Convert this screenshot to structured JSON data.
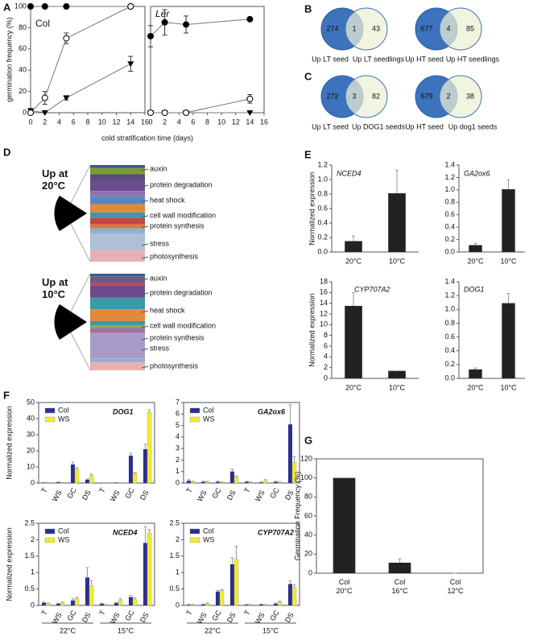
{
  "panel_labels": [
    "A",
    "B",
    "C",
    "D",
    "E",
    "F",
    "G"
  ],
  "venns": [
    {
      "left_label": "Up LT seed",
      "right_label": "Up LT seedlings",
      "left": 274,
      "both": 1,
      "right": 43
    },
    {
      "left_label": "Up HT seed",
      "right_label": "Up HT seedlings",
      "left": 677,
      "both": 4,
      "right": 85
    },
    {
      "left_label": "Up LT seed",
      "right_label": "Up DOG1 seeds",
      "left": 272,
      "both": 3,
      "right": 82
    },
    {
      "left_label": "Up HT seed",
      "right_label": "Up dog1 seeds",
      "left": 679,
      "both": 2,
      "right": 38
    }
  ],
  "panel_d": {
    "stacks": [
      {
        "title": "Up at 20°C",
        "labels": [
          "auxin",
          "protein degradation",
          "heat shock",
          "cell wall modification",
          "protein synthesis",
          "stress",
          "photosynthesis"
        ]
      },
      {
        "title": "Up at 10°C",
        "labels": [
          "auxin",
          "protein degradation",
          "heat shock",
          "cell wall modification",
          "protein synthesis",
          "stress",
          "photosynthesis"
        ]
      }
    ]
  },
  "chart_data": [
    {
      "type": "line",
      "title": "Col",
      "ylabel": "germination frequency (%)",
      "xlabel": "cold stratification time (days)",
      "x": [
        0,
        2,
        5,
        14
      ],
      "xlim": [
        0,
        16
      ],
      "xticks": [
        0,
        2,
        4,
        6,
        8,
        10,
        12,
        14,
        16
      ],
      "ylim": [
        0,
        100
      ],
      "yticks": [
        0,
        20,
        40,
        60,
        80,
        100
      ],
      "series": [
        {
          "marker": "filled-circle",
          "color": "#000000",
          "values": [
            100,
            100,
            100,
            100
          ],
          "errors": [
            null,
            null,
            null,
            null
          ]
        },
        {
          "marker": "triangle",
          "color": "#000000",
          "values": [
            2,
            0,
            14,
            46
          ],
          "errors": [
            null,
            null,
            2,
            7
          ]
        },
        {
          "marker": "open-circle",
          "color": "#000000",
          "values": [
            0,
            14,
            70,
            100
          ],
          "errors": [
            null,
            6,
            5,
            null
          ]
        }
      ]
    },
    {
      "type": "line",
      "title": "Ler",
      "x": [
        0,
        2,
        5,
        14
      ],
      "xlim": [
        0,
        16
      ],
      "xticks": [
        0,
        2,
        4,
        6,
        8,
        10,
        12,
        14,
        16
      ],
      "ylim": [
        0,
        100
      ],
      "series": [
        {
          "marker": "filled-circle",
          "color": "#000000",
          "values": [
            72,
            85,
            83,
            88
          ],
          "errors": [
            10,
            12,
            8,
            null
          ]
        },
        {
          "marker": "triangle",
          "color": "#000000",
          "values": [
            0,
            0,
            0,
            0
          ],
          "errors": [
            null,
            null,
            null,
            null
          ]
        },
        {
          "marker": "open-circle",
          "color": "#000000",
          "values": [
            0,
            0,
            0,
            13
          ],
          "errors": [
            null,
            null,
            null,
            4
          ]
        }
      ]
    },
    {
      "type": "bar",
      "title": "NCED4",
      "ylabel": "Normalized expression",
      "categories": [
        "20°C",
        "10°C"
      ],
      "values": [
        0.15,
        0.81
      ],
      "errors": [
        0.07,
        0.32
      ],
      "color": "#222222",
      "ylim": [
        0,
        1.2
      ],
      "yticks": [
        {
          "value": 0,
          "label": "0.0"
        },
        0.2,
        0.4,
        0.6,
        0.8,
        {
          "value": 1,
          "label": "1.0"
        },
        1.2
      ]
    },
    {
      "type": "bar",
      "title": "GA2ox6",
      "categories": [
        "20°C",
        "10°C"
      ],
      "values": [
        0.11,
        1.01
      ],
      "errors": [
        0.03,
        0.15
      ],
      "color": "#222222",
      "ylim": [
        0,
        1.4
      ],
      "yticks": [
        {
          "value": 0,
          "label": "0.0"
        },
        0.2,
        0.4,
        0.6,
        0.8,
        {
          "value": 1,
          "label": "1.0"
        },
        1.2,
        1.4
      ]
    },
    {
      "type": "bar",
      "title": "CYP707A2",
      "ylabel": "Normalized expression",
      "categories": [
        "20°C",
        "10°C"
      ],
      "values": [
        13.5,
        1.4
      ],
      "errors": [
        2.5,
        0
      ],
      "color": "#222222",
      "ylim": [
        0,
        18
      ],
      "yticks": [
        0,
        2,
        4,
        6,
        8,
        10,
        12,
        14,
        16,
        18
      ]
    },
    {
      "type": "bar",
      "title": "DOG1",
      "categories": [
        "20°C",
        "10°C"
      ],
      "values": [
        0.13,
        1.09
      ],
      "errors": [
        0.02,
        0.14
      ],
      "color": "#222222",
      "ylim": [
        0,
        1.4
      ],
      "yticks": [
        {
          "value": 0,
          "label": "0.0"
        },
        0.2,
        0.4,
        0.6,
        0.8,
        {
          "value": 1,
          "label": "1.0"
        },
        1.2,
        1.4
      ]
    },
    {
      "type": "bar",
      "title": "DOG1",
      "ylabel": "Normalized expression",
      "categories": [
        "T",
        "WS",
        "GC",
        "DS",
        "T",
        "WS",
        "GC",
        "DS"
      ],
      "ylim": [
        0,
        50
      ],
      "yticks": [
        0,
        10,
        20,
        30,
        40,
        50
      ],
      "series": [
        {
          "name": "Col",
          "color": "#2b2f8f",
          "values": [
            0.3,
            0.5,
            11.5,
            2,
            0.1,
            0.2,
            17,
            21
          ],
          "errors": [
            0.1,
            0.1,
            1.5,
            0.5,
            0.1,
            0.1,
            1.5,
            3
          ]
        },
        {
          "name": "WS",
          "color": "#f2ec2e",
          "values": [
            0.3,
            0.3,
            8.5,
            4.5,
            0.1,
            0.1,
            6,
            44
          ],
          "errors": [
            0.1,
            0.1,
            1,
            1,
            0.1,
            0.1,
            0.5,
            1.5
          ]
        }
      ]
    },
    {
      "type": "bar",
      "title": "GA2ox6",
      "categories": [
        "T",
        "WS",
        "GC",
        "DS",
        "T",
        "WS",
        "GC",
        "DS"
      ],
      "ylim": [
        0,
        7
      ],
      "yticks": [
        0,
        1,
        2,
        3,
        4,
        5,
        6,
        7
      ],
      "series": [
        {
          "name": "Col",
          "color": "#2b2f8f",
          "values": [
            0.2,
            0.1,
            0.1,
            1.0,
            0.1,
            0.05,
            0.1,
            5.1
          ],
          "errors": [
            0.1,
            0.05,
            0.05,
            0.2,
            0.05,
            0.05,
            0.05,
            1.7
          ]
        },
        {
          "name": "WS",
          "color": "#f2ec2e",
          "values": [
            0.1,
            0.1,
            0.05,
            0.5,
            0.05,
            0.2,
            0.05,
            1.8
          ],
          "errors": [
            0.05,
            0.05,
            0.05,
            0.1,
            0.05,
            0.1,
            0.05,
            0.5
          ]
        }
      ]
    },
    {
      "type": "bar",
      "title": "NCED4",
      "ylabel": "Normalized expression",
      "categories": [
        "T",
        "WS",
        "GC",
        "DS",
        "T",
        "WS",
        "GC",
        "DS"
      ],
      "groups": [
        "22°C",
        "15°C"
      ],
      "ylim": [
        0,
        2.5
      ],
      "yticks": [
        0,
        0.5,
        1,
        1.5,
        2,
        2.5
      ],
      "series": [
        {
          "name": "Col",
          "color": "#2b2f8f",
          "values": [
            0.08,
            0.05,
            0.15,
            0.85,
            0.05,
            0.07,
            0.25,
            1.9
          ],
          "errors": [
            0.02,
            0.02,
            0.05,
            0.3,
            0.02,
            0.02,
            0.05,
            0.5
          ]
        },
        {
          "name": "WS",
          "color": "#f2ec2e",
          "values": [
            0.05,
            0.07,
            0.2,
            0.6,
            0.02,
            0.15,
            0.18,
            2.2
          ],
          "errors": [
            0.02,
            0.03,
            0.05,
            0.15,
            0.01,
            0.05,
            0.05,
            0.1
          ]
        }
      ]
    },
    {
      "type": "bar",
      "title": "CYP707A2",
      "categories": [
        "T",
        "WS",
        "GC",
        "DS",
        "T",
        "WS",
        "GC",
        "DS"
      ],
      "groups": [
        "22°C",
        "15°C"
      ],
      "ylim": [
        0,
        2.5
      ],
      "yticks": [
        0,
        0.5,
        1,
        1.5,
        2,
        2.5
      ],
      "series": [
        {
          "name": "Col",
          "color": "#2b2f8f",
          "values": [
            0.02,
            0.03,
            0.42,
            1.25,
            0.02,
            0.03,
            0.05,
            0.65
          ],
          "errors": [
            0.01,
            0.01,
            0.03,
            0.2,
            0.01,
            0.01,
            0.02,
            0.1
          ]
        },
        {
          "name": "WS",
          "color": "#f2ec2e",
          "values": [
            0.02,
            0.05,
            0.45,
            1.4,
            0.02,
            0.02,
            0.1,
            0.55
          ],
          "errors": [
            0.01,
            0.02,
            0.03,
            0.4,
            0.01,
            0.01,
            0.03,
            0.08
          ]
        }
      ]
    },
    {
      "type": "bar",
      "ylabel": "Germination Frequency (%)",
      "categories": [
        "Col 20°C",
        "Col 16°C",
        "Col 12°C"
      ],
      "values": [
        100,
        11,
        0
      ],
      "errors": [
        0,
        4,
        0
      ],
      "color": "#222222",
      "ylim": [
        0,
        120
      ],
      "yticks": [
        0,
        20,
        40,
        60,
        80,
        100,
        120
      ]
    }
  ]
}
